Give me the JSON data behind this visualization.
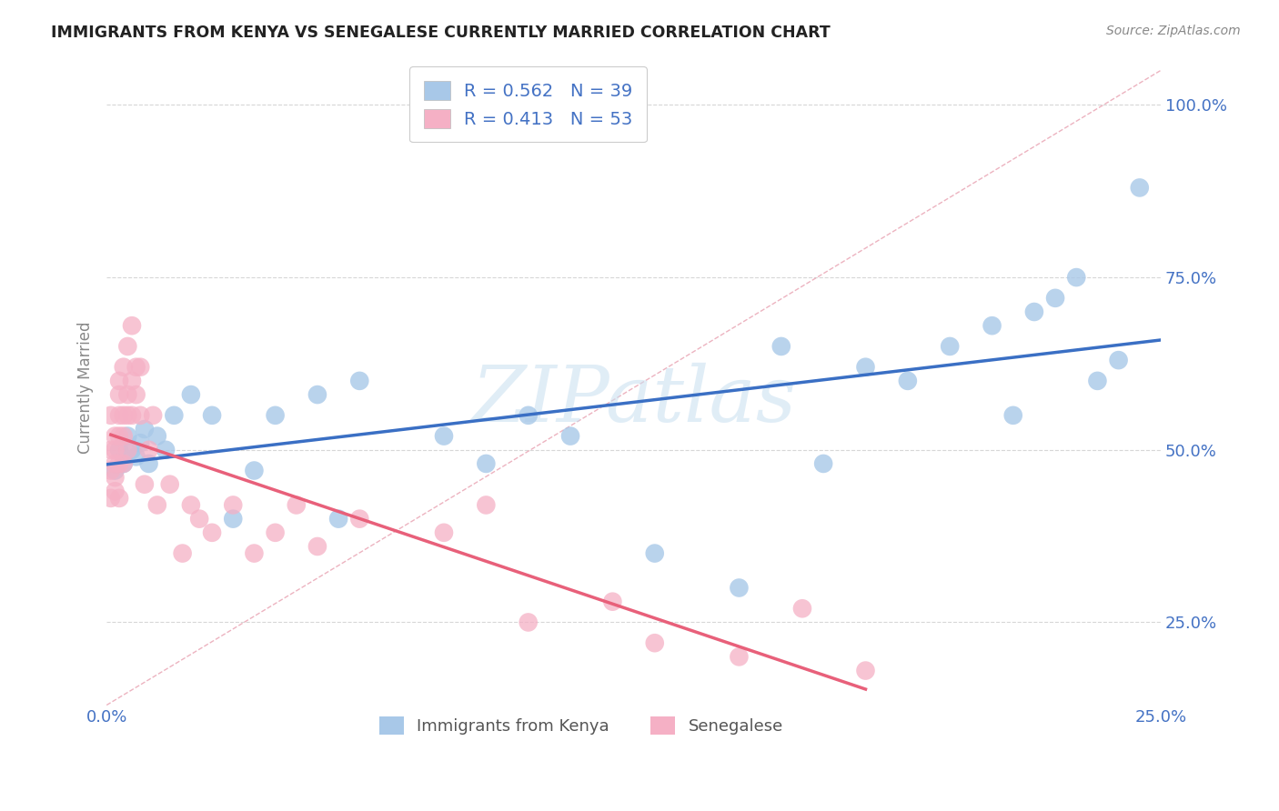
{
  "title": "IMMIGRANTS FROM KENYA VS SENEGALESE CURRENTLY MARRIED CORRELATION CHART",
  "source": "Source: ZipAtlas.com",
  "ylabel_label": "Currently Married",
  "watermark": "ZIPatlas",
  "legend_entry1": "Immigrants from Kenya",
  "legend_entry2": "Senegalese",
  "R1": 0.562,
  "N1": 39,
  "R2": 0.413,
  "N2": 53,
  "color1": "#a8c8e8",
  "color2": "#f5b0c5",
  "line_color1": "#3a6fc4",
  "line_color2": "#e8607a",
  "dash_color": "#e8a0b0",
  "xlim": [
    0.0,
    0.25
  ],
  "ylim": [
    0.13,
    1.05
  ],
  "x_ticks": [
    0.0,
    0.05,
    0.1,
    0.15,
    0.2,
    0.25
  ],
  "y_ticks": [
    0.25,
    0.5,
    0.75,
    1.0
  ],
  "kenya_x": [
    0.002,
    0.003,
    0.004,
    0.005,
    0.006,
    0.007,
    0.008,
    0.009,
    0.01,
    0.012,
    0.014,
    0.016,
    0.02,
    0.025,
    0.03,
    0.035,
    0.04,
    0.05,
    0.055,
    0.06,
    0.08,
    0.09,
    0.1,
    0.11,
    0.13,
    0.15,
    0.16,
    0.17,
    0.18,
    0.19,
    0.2,
    0.21,
    0.215,
    0.22,
    0.225,
    0.23,
    0.235,
    0.24,
    0.245
  ],
  "kenya_y": [
    0.47,
    0.5,
    0.48,
    0.52,
    0.5,
    0.49,
    0.51,
    0.53,
    0.48,
    0.52,
    0.5,
    0.55,
    0.58,
    0.55,
    0.4,
    0.47,
    0.55,
    0.58,
    0.4,
    0.6,
    0.52,
    0.48,
    0.55,
    0.52,
    0.35,
    0.3,
    0.65,
    0.48,
    0.62,
    0.6,
    0.65,
    0.68,
    0.55,
    0.7,
    0.72,
    0.75,
    0.6,
    0.63,
    0.88
  ],
  "senegal_x": [
    0.001,
    0.001,
    0.001,
    0.001,
    0.002,
    0.002,
    0.002,
    0.002,
    0.002,
    0.003,
    0.003,
    0.003,
    0.003,
    0.003,
    0.003,
    0.004,
    0.004,
    0.004,
    0.004,
    0.005,
    0.005,
    0.005,
    0.005,
    0.006,
    0.006,
    0.006,
    0.007,
    0.007,
    0.008,
    0.008,
    0.009,
    0.01,
    0.011,
    0.012,
    0.015,
    0.018,
    0.02,
    0.022,
    0.025,
    0.03,
    0.035,
    0.04,
    0.045,
    0.05,
    0.06,
    0.08,
    0.09,
    0.1,
    0.12,
    0.13,
    0.15,
    0.165,
    0.18
  ],
  "senegal_y": [
    0.47,
    0.5,
    0.43,
    0.55,
    0.46,
    0.5,
    0.44,
    0.48,
    0.52,
    0.55,
    0.48,
    0.43,
    0.52,
    0.58,
    0.6,
    0.62,
    0.55,
    0.48,
    0.52,
    0.65,
    0.58,
    0.5,
    0.55,
    0.68,
    0.6,
    0.55,
    0.62,
    0.58,
    0.55,
    0.62,
    0.45,
    0.5,
    0.55,
    0.42,
    0.45,
    0.35,
    0.42,
    0.4,
    0.38,
    0.42,
    0.35,
    0.38,
    0.42,
    0.36,
    0.4,
    0.38,
    0.42,
    0.25,
    0.28,
    0.22,
    0.2,
    0.27,
    0.18
  ]
}
